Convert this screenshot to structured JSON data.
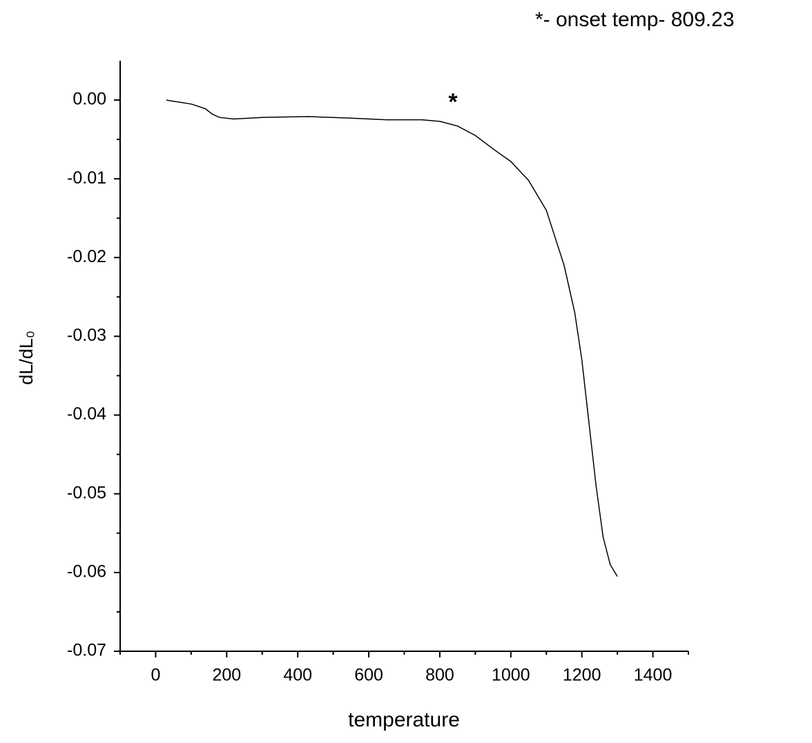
{
  "chart_data": {
    "type": "line",
    "annotation": "*- onset temp- 809.23",
    "marker_label": "*",
    "xlabel": "temperature",
    "ylabel": "dL/dL₀",
    "x": [
      30,
      100,
      140,
      160,
      180,
      220,
      300,
      430,
      550,
      650,
      750,
      800,
      850,
      900,
      950,
      1000,
      1050,
      1100,
      1150,
      1180,
      1200,
      1220,
      1240,
      1260,
      1280,
      1300
    ],
    "values": [
      0,
      -0.0005,
      -0.0011,
      -0.0018,
      -0.0022,
      -0.0024,
      -0.0022,
      -0.0021,
      -0.0023,
      -0.0025,
      -0.0025,
      -0.0027,
      -0.0033,
      -0.0045,
      -0.0062,
      -0.0078,
      -0.0102,
      -0.014,
      -0.021,
      -0.027,
      -0.033,
      -0.041,
      -0.049,
      -0.0555,
      -0.059,
      -0.0605
    ],
    "color": "#000000",
    "xlim": [
      -100,
      1500
    ],
    "xticks": [
      0,
      200,
      400,
      600,
      800,
      1000,
      1200,
      1400
    ],
    "ylim": [
      -0.07,
      0.005
    ],
    "yticks": [
      {
        "value": 0,
        "label": "0.00"
      },
      -0.01,
      -0.02,
      -0.03,
      -0.04,
      -0.05,
      -0.06,
      -0.07
    ],
    "grid": false
  }
}
